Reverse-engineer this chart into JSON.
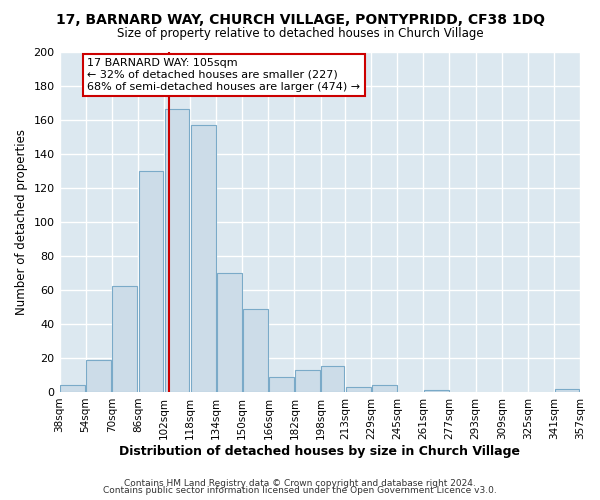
{
  "title": "17, BARNARD WAY, CHURCH VILLAGE, PONTYPRIDD, CF38 1DQ",
  "subtitle": "Size of property relative to detached houses in Church Village",
  "xlabel": "Distribution of detached houses by size in Church Village",
  "ylabel": "Number of detached properties",
  "bar_color": "#ccdce8",
  "bar_edge_color": "#7aaac8",
  "bins": [
    38,
    54,
    70,
    86,
    102,
    118,
    134,
    150,
    166,
    182,
    198,
    213,
    229,
    245,
    261,
    277,
    293,
    309,
    325,
    341,
    357
  ],
  "bin_labels": [
    "38sqm",
    "54sqm",
    "70sqm",
    "86sqm",
    "102sqm",
    "118sqm",
    "134sqm",
    "150sqm",
    "166sqm",
    "182sqm",
    "198sqm",
    "213sqm",
    "229sqm",
    "245sqm",
    "261sqm",
    "277sqm",
    "293sqm",
    "309sqm",
    "325sqm",
    "341sqm",
    "357sqm"
  ],
  "values": [
    4,
    19,
    62,
    130,
    166,
    157,
    70,
    49,
    9,
    13,
    15,
    3,
    4,
    0,
    1,
    0,
    0,
    0,
    0,
    2
  ],
  "ylim": [
    0,
    200
  ],
  "yticks": [
    0,
    20,
    40,
    60,
    80,
    100,
    120,
    140,
    160,
    180,
    200
  ],
  "property_value": 105,
  "vline_color": "#cc0000",
  "annotation_title": "17 BARNARD WAY: 105sqm",
  "annotation_line1": "← 32% of detached houses are smaller (227)",
  "annotation_line2": "68% of semi-detached houses are larger (474) →",
  "annotation_box_facecolor": "#ffffff",
  "annotation_box_edgecolor": "#cc0000",
  "footer1": "Contains HM Land Registry data © Crown copyright and database right 2024.",
  "footer2": "Contains public sector information licensed under the Open Government Licence v3.0.",
  "fig_background": "#ffffff",
  "axes_background": "#dce8f0",
  "grid_color": "#ffffff"
}
